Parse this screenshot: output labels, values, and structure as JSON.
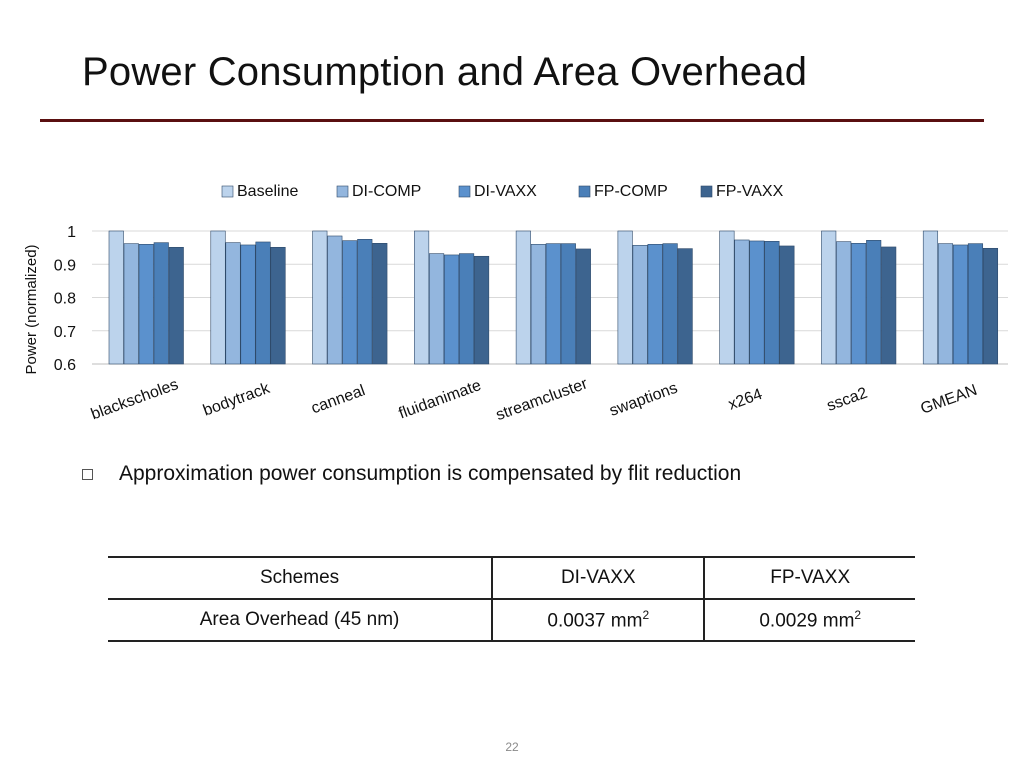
{
  "slide": {
    "title": "Power Consumption and Area Overhead",
    "bullet": "Approximation power consumption is compensated by flit reduction",
    "page_number": "22"
  },
  "colors": {
    "title_rule": "#5a0f10",
    "series": [
      "#bcd3ec",
      "#93b6de",
      "#5b91cd",
      "#4a7fb8",
      "#3d648f"
    ]
  },
  "table": {
    "headers": [
      "Schemes",
      "DI-VAXX",
      "FP-VAXX"
    ],
    "row": {
      "label": "Area Overhead (45 nm)",
      "di_vaxx": "0.0037 mm",
      "fp_vaxx": "0.0029 mm",
      "unit_exponent": "2"
    }
  },
  "chart_data": {
    "type": "bar",
    "title": "",
    "xlabel": "",
    "ylabel": "Power (normalized)",
    "ylim": [
      0.6,
      1.0
    ],
    "yticks": [
      0.6,
      0.7,
      0.8,
      0.9,
      1.0
    ],
    "ytick_labels": [
      "0.6",
      "0.7",
      "0.8",
      "0.9",
      "1"
    ],
    "grid": true,
    "legend_position": "top",
    "categories": [
      "blackscholes",
      "bodytrack",
      "canneal",
      "fluidanimate",
      "streamcluster",
      "swaptions",
      "x264",
      "ssca2",
      "GMEAN"
    ],
    "series": [
      {
        "name": "Baseline",
        "values": [
          1.0,
          1.0,
          1.0,
          1.0,
          1.0,
          1.0,
          1.0,
          1.0,
          1.0
        ]
      },
      {
        "name": "DI-COMP",
        "values": [
          0.962,
          0.965,
          0.985,
          0.932,
          0.96,
          0.957,
          0.973,
          0.968,
          0.962
        ]
      },
      {
        "name": "DI-VAXX",
        "values": [
          0.96,
          0.958,
          0.971,
          0.928,
          0.962,
          0.96,
          0.97,
          0.963,
          0.958
        ]
      },
      {
        "name": "FP-COMP",
        "values": [
          0.965,
          0.967,
          0.975,
          0.932,
          0.962,
          0.962,
          0.969,
          0.972,
          0.962
        ]
      },
      {
        "name": "FP-VAXX",
        "values": [
          0.951,
          0.951,
          0.963,
          0.924,
          0.946,
          0.947,
          0.955,
          0.952,
          0.948
        ]
      }
    ]
  }
}
